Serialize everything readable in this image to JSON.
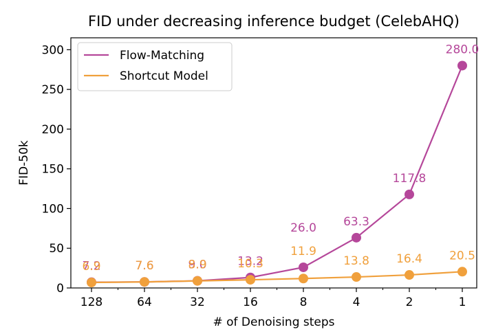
{
  "chart_data": {
    "type": "line",
    "title": "FID under decreasing inference budget (CelebAHQ)",
    "xlabel": "# of Denoising steps",
    "ylabel": "FID-50k",
    "categories": [
      "128",
      "64",
      "32",
      "16",
      "8",
      "4",
      "2",
      "1"
    ],
    "ylim": [
      0,
      315
    ],
    "yticks": [
      0,
      50,
      100,
      150,
      200,
      250,
      300
    ],
    "grid": false,
    "legend_position": "top-left",
    "series": [
      {
        "name": "Flow-Matching",
        "color": "#b5479a",
        "values": [
          7.2,
          7.6,
          9.0,
          13.2,
          26.0,
          63.3,
          117.8,
          280.0
        ],
        "labels": [
          "7.2",
          "7.6",
          "9.0",
          "13.2",
          "26.0",
          "63.3",
          "117.8",
          "280.0"
        ]
      },
      {
        "name": "Shortcut Model",
        "color": "#f0a03c",
        "values": [
          6.9,
          7.6,
          8.9,
          10.3,
          11.9,
          13.8,
          16.4,
          20.5
        ],
        "labels": [
          "6.9",
          "7.6",
          "8.9",
          "10.3",
          "11.9",
          "13.8",
          "16.4",
          "20.5"
        ]
      }
    ]
  }
}
